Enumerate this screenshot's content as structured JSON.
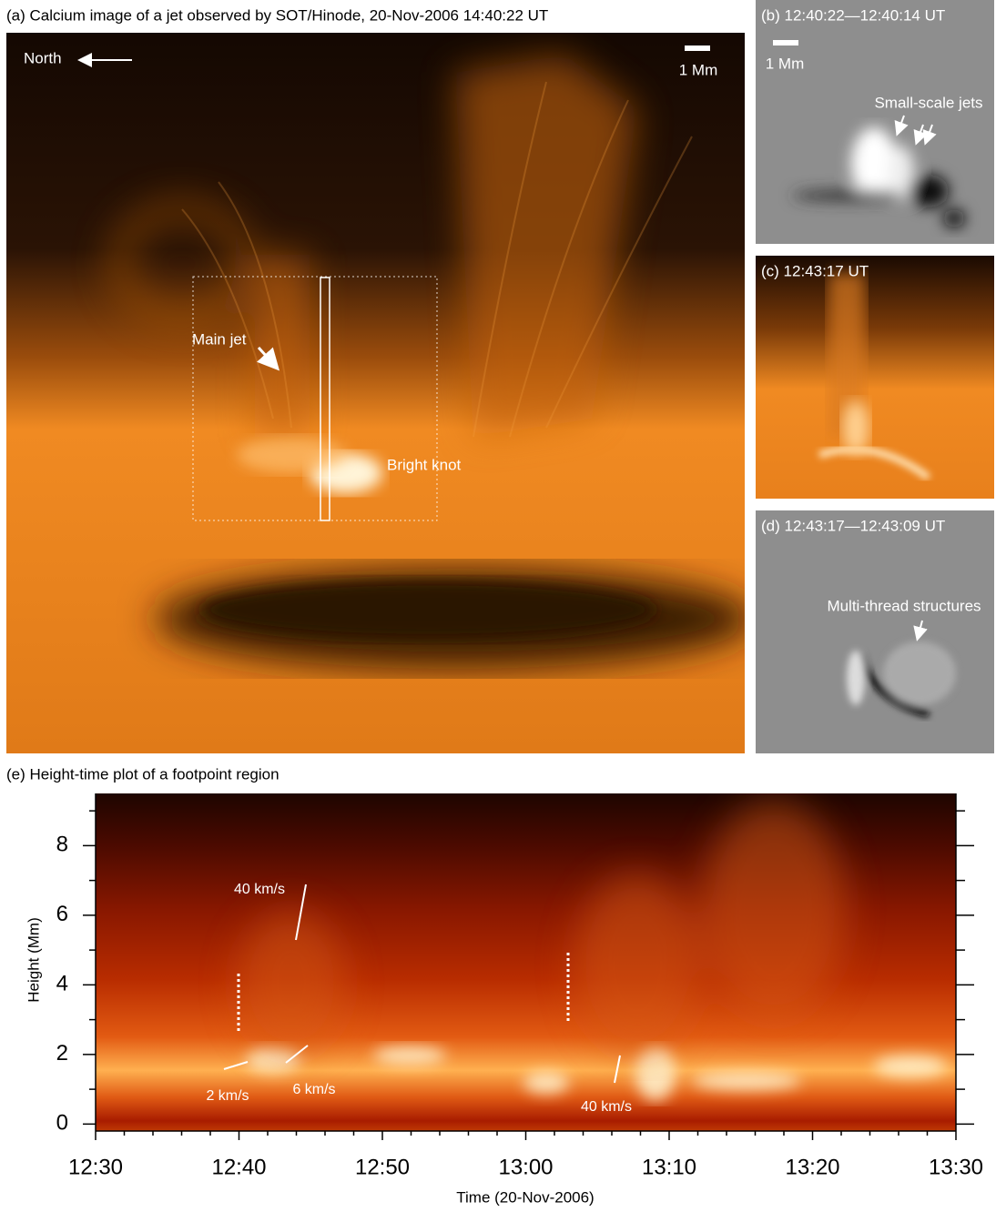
{
  "panels": {
    "a": {
      "label": "(a) Calcium image of a jet observed by SOT/Hinode, 20-Nov-2006 14:40:22 UT",
      "north": "North",
      "scale": "1 Mm",
      "main_jet": "Main jet",
      "bright_knot": "Bright knot"
    },
    "b": {
      "label": "(b) 12:40:22—12:40:14 UT",
      "scale": "1 Mm",
      "annotation": "Small-scale jets"
    },
    "c": {
      "label": "(c) 12:43:17 UT"
    },
    "d": {
      "label": "(d) 12:43:17—12:43:09 UT",
      "annotation": "Multi-thread structures"
    }
  },
  "chart_data": {
    "type": "image",
    "title": "(e) Height-time plot of a footpoint region",
    "x_label": "Time (20-Nov-2006)",
    "y_label": "Height (Mm)",
    "xticks": [
      "12:30",
      "12:40",
      "12:50",
      "13:00",
      "13:10",
      "13:20",
      "13:30"
    ],
    "ylim": [
      -0.2,
      9.5
    ],
    "yticks": [
      0,
      2,
      4,
      6,
      8
    ],
    "annotations": [
      "40 km/s",
      "2 km/s",
      "6 km/s",
      "40 km/s"
    ]
  }
}
